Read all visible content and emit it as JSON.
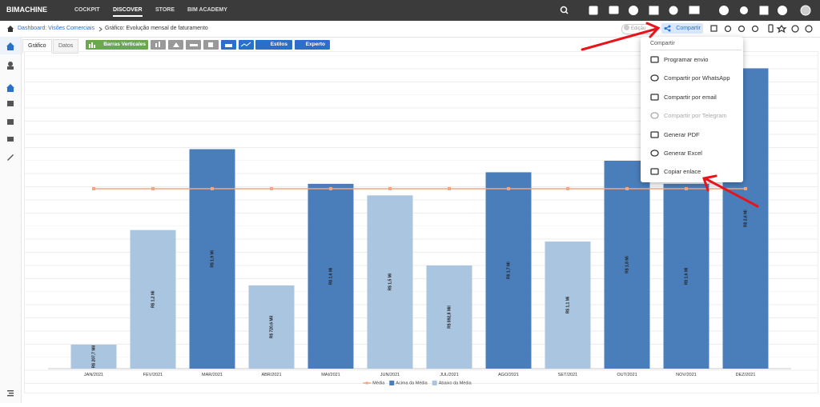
{
  "nav": {
    "logo": "BIMACHINE",
    "items": [
      "COCKPIT",
      "DISCOVER",
      "STORE",
      "BIM ACADEMY"
    ]
  },
  "breadcrumb": {
    "dashboard": "Dashboard: Visões Comerciais",
    "chart": "Gráfico: Evolução mensal de faturamento"
  },
  "toolbar": {
    "edit": "Edição",
    "share": "Compartir",
    "tabs": [
      "Gráfico",
      "Datos"
    ],
    "chart_type": "Barras Verticales",
    "styles": "Estilos",
    "expert": "Experto"
  },
  "share_menu": {
    "title": "Compartir",
    "items": [
      "Programar envio",
      "Compartir por WhatsApp",
      "Compartir por email",
      "Compartir por Telegram",
      "Generar PDF",
      "Generar Excel",
      "Copiar enlace"
    ]
  },
  "chart_data": {
    "type": "bar",
    "categories": [
      "JAN/2021",
      "FEV/2021",
      "MAR/2021",
      "ABR/2021",
      "MAI/2021",
      "JUN/2021",
      "JUL/2021",
      "AGO/2021",
      "SET/2021",
      "OUT/2021",
      "NOV/2021",
      "DEZ/2021"
    ],
    "ylim": [
      0,
      2700
    ],
    "series": [
      {
        "name": "Média",
        "type": "line",
        "color": "#f4a582",
        "values": [
          1558,
          1558,
          1558,
          1558,
          1558,
          1558,
          1558,
          1558,
          1558,
          1558,
          1558,
          1558
        ]
      },
      {
        "name": "Acima da Média",
        "color": "#4a7ebb",
        "values": [
          null,
          null,
          1900,
          null,
          1600,
          null,
          null,
          1700,
          null,
          1800,
          1600,
          2600
        ],
        "value_labels": [
          null,
          null,
          "R$ 1,9 Mi",
          null,
          "R$ 1,6 Mi",
          null,
          null,
          "R$ 1,7 Mi",
          null,
          "R$ 1,8 Mi",
          "R$ 1,6 Mi",
          "R$ 2,6 Mi"
        ]
      },
      {
        "name": "Abaixo da Média",
        "color": "#a9c5e0",
        "values": [
          207.7,
          1200,
          null,
          720.6,
          null,
          1500,
          892.8,
          null,
          1100,
          null,
          null,
          null
        ],
        "value_labels": [
          "R$ 207,7 Mil",
          "R$ 1,2 Mi",
          null,
          "R$ 720,6 Mil",
          null,
          "R$ 1,5 Mi",
          "R$ 892,8 Mil",
          null,
          "R$ 1,1 Mi",
          null,
          null,
          null
        ]
      }
    ]
  }
}
